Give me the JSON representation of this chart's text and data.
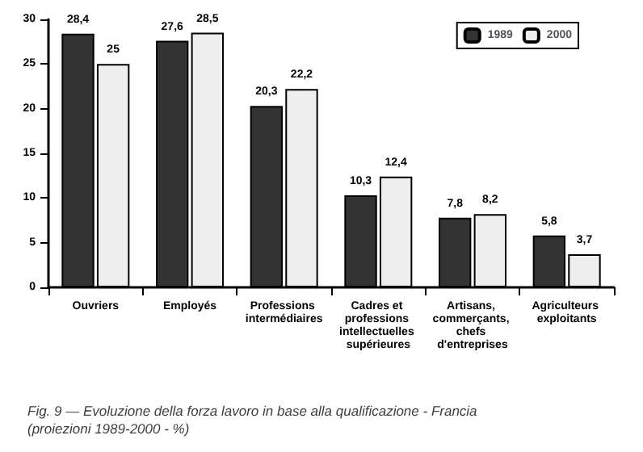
{
  "chart_data": {
    "type": "bar",
    "title": "Fig. 9 — Evoluzione della forza lavoro in base alla qualificazione - Francia (proiezioni 1989-2000 - %)",
    "categories": [
      "Ouvriers",
      "Employés",
      "Professions intermédiaires",
      "Cadres et professions intellectuelles supérieures",
      "Artisans, commerçants, chefs d'entreprises",
      "Agriculteurs exploitants"
    ],
    "series": [
      {
        "name": "1989",
        "color": "#333333",
        "values": [
          28.4,
          27.6,
          20.3,
          10.3,
          7.8,
          5.8
        ],
        "value_labels": [
          "28,4",
          "27,6",
          "20,3",
          "10,3",
          "7,8",
          "5,8"
        ]
      },
      {
        "name": "2000",
        "color": "#eeeeee",
        "values": [
          25,
          28.5,
          22.2,
          12.4,
          8.2,
          3.7
        ],
        "value_labels": [
          "25",
          "28,5",
          "22,2",
          "12,4",
          "8,2",
          "3,7"
        ]
      }
    ],
    "ylim": [
      0,
      30
    ],
    "yticks": [
      0,
      5,
      10,
      15,
      20,
      25,
      30
    ],
    "grid": false,
    "legend": "top right"
  }
}
